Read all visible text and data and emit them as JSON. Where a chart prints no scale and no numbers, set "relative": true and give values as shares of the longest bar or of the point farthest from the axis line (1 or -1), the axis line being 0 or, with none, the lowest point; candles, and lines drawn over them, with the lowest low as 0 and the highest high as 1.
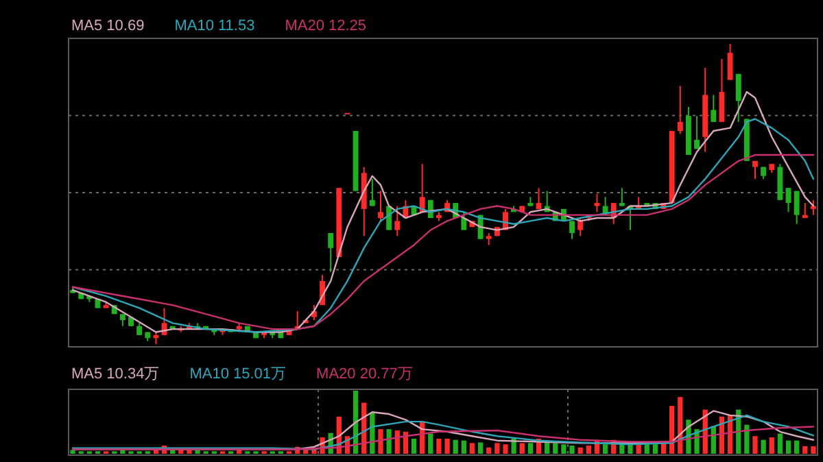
{
  "chart_data": [
    {
      "type": "candlestick",
      "relative": true,
      "grid": "y",
      "legend": "top",
      "categories": [
        null,
        null,
        null,
        null,
        null,
        null,
        null,
        null,
        null,
        null,
        null,
        null,
        null,
        null,
        null,
        null,
        null,
        null,
        null,
        null,
        null,
        null,
        null,
        null,
        null,
        null,
        null,
        null,
        null,
        null,
        null,
        null,
        null,
        null,
        null,
        null,
        null,
        null,
        null,
        null,
        null,
        null,
        null,
        null,
        null,
        null,
        null,
        null,
        null,
        null,
        null,
        null,
        null,
        null,
        null,
        null,
        null,
        null,
        null,
        null,
        null,
        null,
        null,
        null,
        null,
        null,
        null,
        null,
        null,
        null,
        null,
        null,
        null,
        null,
        null,
        null,
        null,
        null,
        null,
        null,
        null,
        null,
        null,
        null,
        null,
        null,
        null,
        null,
        null,
        null
      ],
      "ohlc": [
        [
          0.18,
          0.19,
          0.17,
          0.17
        ],
        [
          0.17,
          0.17,
          0.15,
          0.15
        ],
        [
          0.16,
          0.16,
          0.14,
          0.15
        ],
        [
          0.15,
          0.15,
          0.12,
          0.12
        ],
        [
          0.12,
          0.14,
          0.12,
          0.13
        ],
        [
          0.13,
          0.13,
          0.1,
          0.1
        ],
        [
          0.1,
          0.1,
          0.06,
          0.08
        ],
        [
          0.09,
          0.09,
          0.06,
          0.06
        ],
        [
          0.06,
          0.07,
          0.03,
          0.03
        ],
        [
          0.04,
          0.04,
          0.01,
          0.02
        ],
        [
          0.02,
          0.04,
          0,
          0.03
        ],
        [
          0.03,
          0.12,
          0.03,
          0.07
        ],
        [
          0.06,
          0.06,
          0.05,
          0.05
        ],
        [
          0.05,
          0.06,
          0.04,
          0.05
        ],
        [
          0.05,
          0.07,
          0.05,
          0.06
        ],
        [
          0.06,
          0.07,
          0.06,
          0.06
        ],
        [
          0.06,
          0.06,
          0.05,
          0.05
        ],
        [
          0.05,
          0.05,
          0.03,
          0.04
        ],
        [
          0.04,
          0.05,
          0.03,
          0.05
        ],
        [
          0.05,
          0.05,
          0.04,
          0.04
        ],
        [
          0.05,
          0.07,
          0.04,
          0.06
        ],
        [
          0.06,
          0.06,
          0.04,
          0.04
        ],
        [
          0.04,
          0.04,
          0.02,
          0.02
        ],
        [
          0.03,
          0.04,
          0.02,
          0.04
        ],
        [
          0.04,
          0.04,
          0.02,
          0.03
        ],
        [
          0.04,
          0.04,
          0.02,
          0.02
        ],
        [
          0.03,
          0.05,
          0.03,
          0.05
        ],
        [
          0.05,
          0.11,
          0.05,
          0.06
        ],
        [
          0.07,
          0.08,
          0.07,
          0.08
        ],
        [
          0.09,
          0.13,
          0.08,
          0.11
        ],
        [
          0.13,
          0.23,
          0.13,
          0.21
        ],
        [
          0.37,
          0.37,
          0.24,
          0.32
        ],
        [
          0.29,
          0.52,
          0.29,
          0.52
        ],
        [
          0.77,
          0.77,
          0.77,
          0.77
        ],
        [
          0.71,
          0.71,
          0.51,
          0.51
        ],
        [
          0.45,
          0.59,
          0.36,
          0.57
        ],
        [
          0.48,
          0.55,
          0.46,
          0.46
        ],
        [
          0.42,
          0.51,
          0.41,
          0.44
        ],
        [
          0.46,
          0.46,
          0.38,
          0.38
        ],
        [
          0.38,
          0.46,
          0.36,
          0.41
        ],
        [
          0.42,
          0.48,
          0.42,
          0.46
        ],
        [
          0.46,
          0.46,
          0.43,
          0.43
        ],
        [
          0.44,
          0.6,
          0.44,
          0.49
        ],
        [
          0.48,
          0.48,
          0.42,
          0.42
        ],
        [
          0.42,
          0.44,
          0.41,
          0.43
        ],
        [
          0.44,
          0.48,
          0.44,
          0.47
        ],
        [
          0.47,
          0.47,
          0.42,
          0.42
        ],
        [
          0.42,
          0.44,
          0.38,
          0.38
        ],
        [
          0.39,
          0.41,
          0.39,
          0.41
        ],
        [
          0.43,
          0.43,
          0.35,
          0.35
        ],
        [
          0.35,
          0.37,
          0.33,
          0.36
        ],
        [
          0.36,
          0.39,
          0.36,
          0.39
        ],
        [
          0.38,
          0.45,
          0.38,
          0.44
        ],
        [
          0.45,
          0.46,
          0.44,
          0.44
        ],
        [
          0.44,
          0.46,
          0.44,
          0.46
        ],
        [
          0.47,
          0.49,
          0.46,
          0.46
        ],
        [
          0.45,
          0.52,
          0.45,
          0.47
        ],
        [
          0.46,
          0.51,
          0.44,
          0.44
        ],
        [
          0.44,
          0.44,
          0.41,
          0.41
        ],
        [
          0.45,
          0.45,
          0.41,
          0.41
        ],
        [
          0.41,
          0.41,
          0.35,
          0.37
        ],
        [
          0.38,
          0.42,
          0.36,
          0.41
        ],
        [
          0.42,
          0.43,
          0.41,
          0.43
        ],
        [
          0.46,
          0.5,
          0.44,
          0.47
        ],
        [
          0.46,
          0.49,
          0.43,
          0.43
        ],
        [
          0.42,
          0.47,
          0.4,
          0.47
        ],
        [
          0.47,
          0.52,
          0.46,
          0.46
        ],
        [
          0.46,
          0.46,
          0.38,
          0.45
        ],
        [
          0.45,
          0.49,
          0.45,
          0.46
        ],
        [
          0.47,
          0.47,
          0.46,
          0.46
        ],
        [
          0.47,
          0.47,
          0.45,
          0.45
        ],
        [
          0.45,
          0.47,
          0.45,
          0.47
        ],
        [
          0.47,
          0.71,
          0.47,
          0.71
        ],
        [
          0.71,
          0.86,
          0.7,
          0.74
        ],
        [
          0.76,
          0.79,
          0.63,
          0.63
        ],
        [
          0.68,
          0.76,
          0.65,
          0.65
        ],
        [
          0.69,
          0.92,
          0.64,
          0.83
        ],
        [
          0.78,
          0.83,
          0.74,
          0.74
        ],
        [
          0.74,
          0.95,
          0.74,
          0.84
        ],
        [
          0.88,
          1.0,
          0.88,
          0.97
        ],
        [
          0.9,
          0.9,
          0.74,
          0.81
        ],
        [
          0.75,
          0.75,
          0.61,
          0.61
        ],
        [
          0.59,
          0.61,
          0.55,
          0.61
        ],
        [
          0.59,
          0.59,
          0.55,
          0.56
        ],
        [
          0.58,
          0.6,
          0.57,
          0.6
        ],
        [
          0.59,
          0.6,
          0.48,
          0.48
        ],
        [
          0.52,
          0.52,
          0.44,
          0.47
        ],
        [
          0.51,
          0.51,
          0.4,
          0.43
        ],
        [
          0.42,
          0.47,
          0.42,
          0.43
        ],
        [
          0.45,
          0.48,
          0.43,
          0.46
        ]
      ],
      "colors": [
        "#20b020",
        "#20b020",
        "#20b020",
        "#20b020",
        "#ff2a2a",
        "#20b020",
        "#20b020",
        "#20b020",
        "#20b020",
        "#20b020",
        "#ff2a2a",
        "#ff2a2a",
        "#20b020",
        "#ff2a2a",
        "#ff2a2a",
        "#20b020",
        "#20b020",
        "#20b020",
        "#ff2a2a",
        "#20b020",
        "#ff2a2a",
        "#20b020",
        "#20b020",
        "#ff2a2a",
        "#20b020",
        "#20b020",
        "#ff2a2a",
        "#ff2a2a",
        "#ff2a2a",
        "#ff2a2a",
        "#ff2a2a",
        "#20b020",
        "#ff2a2a",
        "#ff2a2a",
        "#20b020",
        "#ff2a2a",
        "#20b020",
        "#ff2a2a",
        "#20b020",
        "#ff2a2a",
        "#ff2a2a",
        "#20b020",
        "#ff2a2a",
        "#20b020",
        "#ff2a2a",
        "#ff2a2a",
        "#20b020",
        "#20b020",
        "#ff2a2a",
        "#20b020",
        "#ff2a2a",
        "#ff2a2a",
        "#ff2a2a",
        "#20b020",
        "#ff2a2a",
        "#20b020",
        "#ff2a2a",
        "#20b020",
        "#20b020",
        "#20b020",
        "#20b020",
        "#ff2a2a",
        "#ff2a2a",
        "#ff2a2a",
        "#20b020",
        "#ff2a2a",
        "#20b020",
        "#20b020",
        "#ff2a2a",
        "#20b020",
        "#20b020",
        "#ff2a2a",
        "#ff2a2a",
        "#ff2a2a",
        "#20b020",
        "#20b020",
        "#ff2a2a",
        "#20b020",
        "#ff2a2a",
        "#ff2a2a",
        "#20b020",
        "#20b020",
        "#ff2a2a",
        "#20b020",
        "#ff2a2a",
        "#20b020",
        "#20b020",
        "#20b020",
        "#ff2a2a",
        "#ff2a2a"
      ],
      "series": [
        {
          "name": "MA5 10.69",
          "type": "line",
          "color": "#d8a8bc",
          "values": [
            0.18,
            null,
            null,
            null,
            0.14,
            null,
            null,
            0.09,
            null,
            null,
            0.04,
            null,
            0.05,
            null,
            null,
            0.05,
            null,
            null,
            0.05,
            null,
            null,
            null,
            0.04,
            null,
            null,
            0.04,
            null,
            0.05,
            null,
            0.11,
            null,
            0.21,
            null,
            0.39,
            null,
            0.51,
            0.56,
            0.53,
            0.46,
            null,
            0.42,
            null,
            0.44,
            null,
            null,
            0.45,
            null,
            0.42,
            null,
            0.39,
            null,
            0.38,
            null,
            0.39,
            null,
            0.44,
            null,
            0.45,
            null,
            0.43,
            null,
            0.41,
            null,
            0.42,
            null,
            0.42,
            null,
            0.46,
            null,
            0.46,
            null,
            null,
            0.47,
            0.53,
            null,
            0.64,
            null,
            0.71,
            null,
            0.72,
            null,
            0.84,
            0.82,
            null,
            0.69,
            null,
            0.59,
            null,
            0.49,
            0.46
          ]
        },
        {
          "name": "MA10 11.53",
          "type": "line",
          "color": "#2fa6b8",
          "values": [
            0.19,
            null,
            null,
            null,
            0.16,
            null,
            null,
            null,
            0.12,
            null,
            null,
            null,
            0.07,
            null,
            null,
            null,
            0.05,
            null,
            null,
            null,
            null,
            null,
            0.04,
            null,
            null,
            null,
            null,
            0.05,
            null,
            0.06,
            null,
            0.12,
            null,
            0.21,
            null,
            0.32,
            null,
            0.41,
            null,
            0.45,
            null,
            0.46,
            null,
            0.44,
            null,
            0.45,
            null,
            0.44,
            null,
            0.42,
            null,
            0.41,
            null,
            0.4,
            null,
            0.41,
            null,
            0.42,
            null,
            0.41,
            null,
            0.42,
            null,
            0.43,
            null,
            0.44,
            null,
            0.45,
            null,
            0.45,
            null,
            null,
            0.46,
            null,
            0.49,
            null,
            0.55,
            null,
            0.62,
            null,
            0.69,
            0.74,
            0.75,
            null,
            0.72,
            null,
            0.68,
            null,
            0.61,
            0.55
          ]
        },
        {
          "name": "MA20 12.25",
          "type": "line",
          "color": "#c8306e",
          "values": [
            0.19,
            null,
            null,
            null,
            0.17,
            null,
            null,
            null,
            0.15,
            null,
            null,
            null,
            0.13,
            null,
            null,
            null,
            0.1,
            null,
            null,
            null,
            0.07,
            null,
            null,
            null,
            0.05,
            null,
            null,
            0.05,
            null,
            0.06,
            null,
            0.1,
            null,
            0.15,
            null,
            0.21,
            null,
            0.25,
            null,
            0.29,
            null,
            0.33,
            null,
            0.38,
            null,
            0.41,
            null,
            0.43,
            null,
            0.45,
            null,
            0.46,
            null,
            0.45,
            null,
            0.43,
            null,
            0.43,
            null,
            null,
            null,
            0.43,
            null,
            null,
            null,
            0.43,
            null,
            null,
            null,
            0.43,
            null,
            null,
            0.45,
            null,
            0.48,
            null,
            0.53,
            null,
            0.57,
            null,
            0.61,
            null,
            0.63,
            null,
            0.63,
            null,
            0.63,
            null,
            null,
            0.63
          ]
        }
      ]
    },
    {
      "type": "bar",
      "relative": true,
      "grid": "x",
      "legend": "top",
      "categories": [
        null,
        null,
        null,
        null,
        null,
        null,
        null,
        null,
        null,
        null,
        null,
        null,
        null,
        null,
        null,
        null,
        null,
        null,
        null,
        null,
        null,
        null,
        null,
        null,
        null,
        null,
        null,
        null,
        null,
        null,
        null,
        null,
        null,
        null,
        null,
        null,
        null,
        null,
        null,
        null,
        null,
        null,
        null,
        null,
        null,
        null,
        null,
        null,
        null,
        null,
        null,
        null,
        null,
        null,
        null,
        null,
        null,
        null,
        null,
        null,
        null,
        null,
        null,
        null,
        null,
        null,
        null,
        null,
        null,
        null,
        null,
        null,
        null,
        null,
        null,
        null,
        null,
        null,
        null,
        null,
        null,
        null,
        null,
        null,
        null,
        null,
        null,
        null,
        null,
        null
      ],
      "series": [
        {
          "type": "bar",
          "values": [
            0.06,
            0.04,
            0.04,
            0.04,
            0.04,
            0.04,
            0.06,
            0.04,
            0.04,
            0.04,
            0.06,
            0.13,
            0.06,
            0.06,
            0.07,
            0.06,
            0.04,
            0.04,
            0.04,
            0.04,
            0.06,
            0.04,
            0.04,
            0.04,
            0.04,
            0.04,
            0.04,
            0.11,
            0.07,
            0.1,
            0.26,
            0.33,
            0.59,
            0.28,
            1,
            0.81,
            0.65,
            0.39,
            0.39,
            0.37,
            0.35,
            0.24,
            0.51,
            0.32,
            0.24,
            0.24,
            0.22,
            0.21,
            0.17,
            0.18,
            0.1,
            0.17,
            0.15,
            0.24,
            0.17,
            0.17,
            0.24,
            0.19,
            0.17,
            0.15,
            0.13,
            0.1,
            0.13,
            0.22,
            0.15,
            0.22,
            0.17,
            0.17,
            0.17,
            0.15,
            0.15,
            0.17,
            0.76,
            0.9,
            0.54,
            0.39,
            0.7,
            0.44,
            0.59,
            0.61,
            0.7,
            0.46,
            0.28,
            0.22,
            0.26,
            0.32,
            0.21,
            0.21,
            0.12,
            0.12
          ],
          "colors": [
            "#20b020",
            "#20b020",
            "#20b020",
            "#20b020",
            "#ff2a2a",
            "#20b020",
            "#20b020",
            "#20b020",
            "#20b020",
            "#20b020",
            "#ff2a2a",
            "#ff2a2a",
            "#20b020",
            "#ff2a2a",
            "#ff2a2a",
            "#20b020",
            "#20b020",
            "#20b020",
            "#ff2a2a",
            "#20b020",
            "#ff2a2a",
            "#20b020",
            "#20b020",
            "#ff2a2a",
            "#20b020",
            "#20b020",
            "#ff2a2a",
            "#ff2a2a",
            "#ff2a2a",
            "#ff2a2a",
            "#ff2a2a",
            "#20b020",
            "#ff2a2a",
            "#ff2a2a",
            "#20b020",
            "#ff2a2a",
            "#20b020",
            "#ff2a2a",
            "#20b020",
            "#ff2a2a",
            "#ff2a2a",
            "#20b020",
            "#ff2a2a",
            "#20b020",
            "#ff2a2a",
            "#ff2a2a",
            "#20b020",
            "#20b020",
            "#ff2a2a",
            "#20b020",
            "#ff2a2a",
            "#ff2a2a",
            "#ff2a2a",
            "#20b020",
            "#ff2a2a",
            "#20b020",
            "#ff2a2a",
            "#20b020",
            "#20b020",
            "#20b020",
            "#20b020",
            "#ff2a2a",
            "#ff2a2a",
            "#ff2a2a",
            "#20b020",
            "#ff2a2a",
            "#20b020",
            "#20b020",
            "#ff2a2a",
            "#20b020",
            "#20b020",
            "#ff2a2a",
            "#ff2a2a",
            "#ff2a2a",
            "#20b020",
            "#20b020",
            "#ff2a2a",
            "#20b020",
            "#ff2a2a",
            "#ff2a2a",
            "#20b020",
            "#20b020",
            "#ff2a2a",
            "#20b020",
            "#ff2a2a",
            "#20b020",
            "#20b020",
            "#20b020",
            "#ff2a2a",
            "#ff2a2a"
          ]
        },
        {
          "name": "MA5 10.34万",
          "type": "line",
          "color": "#d8a8bc",
          "values": [
            0.07,
            null,
            null,
            null,
            null,
            null,
            null,
            null,
            null,
            null,
            null,
            null,
            null,
            0.07,
            null,
            null,
            null,
            null,
            null,
            null,
            null,
            null,
            null,
            null,
            null,
            null,
            null,
            0.07,
            null,
            0.11,
            null,
            null,
            0.28,
            null,
            0.5,
            null,
            0.66,
            null,
            0.63,
            null,
            0.54,
            null,
            0.39,
            null,
            null,
            0.35,
            null,
            null,
            0.28,
            null,
            null,
            0.21,
            null,
            null,
            null,
            null,
            0.19,
            null,
            null,
            null,
            null,
            0.17,
            null,
            null,
            null,
            null,
            null,
            0.17,
            null,
            null,
            null,
            null,
            0.19,
            null,
            0.43,
            null,
            null,
            0.68,
            null,
            0.61,
            null,
            0.59,
            null,
            0.51,
            null,
            0.35,
            null,
            0.28,
            null,
            0.22
          ]
        },
        {
          "name": "MA10 15.01万",
          "type": "line",
          "color": "#2fa6b8",
          "values": [
            0.09,
            null,
            null,
            null,
            null,
            null,
            null,
            null,
            null,
            null,
            null,
            null,
            null,
            null,
            null,
            null,
            null,
            null,
            null,
            null,
            null,
            null,
            null,
            null,
            0.09,
            null,
            null,
            null,
            null,
            0.07,
            null,
            null,
            0.15,
            null,
            0.28,
            null,
            0.43,
            null,
            null,
            null,
            0.51,
            null,
            0.51,
            null,
            0.46,
            null,
            null,
            null,
            0.35,
            null,
            null,
            0.28,
            null,
            null,
            null,
            null,
            0.21,
            null,
            null,
            null,
            null,
            0.18,
            null,
            null,
            null,
            null,
            null,
            0.15,
            null,
            null,
            null,
            null,
            0.17,
            null,
            0.29,
            null,
            null,
            0.43,
            null,
            null,
            null,
            0.61,
            null,
            0.51,
            null,
            null,
            0.43,
            null,
            null,
            0.29
          ]
        },
        {
          "name": "MA20 20.77万",
          "type": "line",
          "color": "#c8306e",
          "values": [
            0.07,
            null,
            null,
            null,
            null,
            null,
            null,
            null,
            null,
            null,
            null,
            null,
            null,
            null,
            null,
            null,
            null,
            null,
            null,
            null,
            null,
            null,
            null,
            null,
            null,
            null,
            null,
            0.07,
            null,
            null,
            null,
            null,
            0.1,
            null,
            null,
            null,
            0.19,
            null,
            null,
            null,
            0.28,
            null,
            null,
            null,
            0.35,
            null,
            null,
            null,
            null,
            null,
            null,
            0.37,
            null,
            null,
            null,
            null,
            0.28,
            null,
            null,
            null,
            null,
            0.22,
            null,
            null,
            null,
            null,
            null,
            0.19,
            null,
            null,
            null,
            null,
            0.19,
            null,
            null,
            0.26,
            null,
            null,
            null,
            null,
            null,
            0.37,
            null,
            null,
            null,
            0.41,
            null,
            null,
            null,
            0.43
          ]
        }
      ]
    }
  ]
}
